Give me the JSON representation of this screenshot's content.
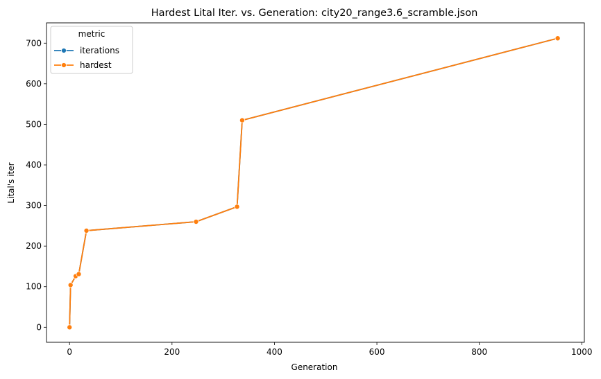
{
  "chart_data": {
    "type": "line",
    "title": "Hardest Lital Iter. vs. Generation: city20_range3.6_scramble.json",
    "xlabel": "Generation",
    "ylabel": "Lital's iter",
    "xlim": [
      -45,
      1005
    ],
    "ylim": [
      -37,
      750
    ],
    "xticks": [
      0,
      200,
      400,
      600,
      800,
      1000
    ],
    "yticks": [
      0,
      100,
      200,
      300,
      400,
      500,
      600,
      700
    ],
    "grid": false,
    "legend": {
      "title": "metric",
      "position": "top-left"
    },
    "series": [
      {
        "name": "iterations",
        "color": "#1f77b4",
        "marker": "circle",
        "x": [
          0,
          2,
          12,
          18,
          33,
          247,
          327,
          337,
          953
        ],
        "y": [
          0,
          104,
          126,
          131,
          238,
          260,
          297,
          510,
          712
        ]
      },
      {
        "name": "hardest",
        "color": "#ff7f0e",
        "marker": "circle",
        "x": [
          0,
          2,
          12,
          18,
          33,
          247,
          327,
          337,
          953
        ],
        "y": [
          0,
          104,
          126,
          131,
          238,
          260,
          297,
          510,
          712
        ]
      }
    ]
  }
}
